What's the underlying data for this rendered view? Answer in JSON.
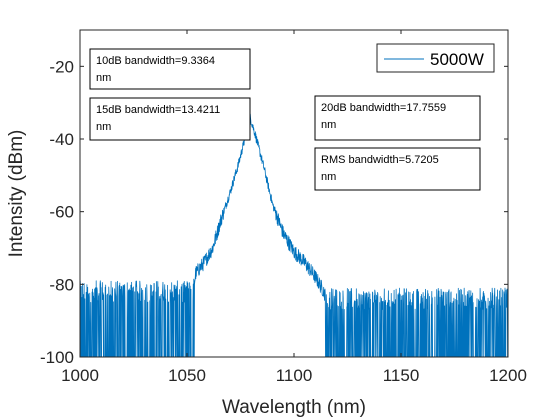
{
  "chart_data": {
    "type": "line",
    "title": "",
    "xlabel": "Wavelength (nm)",
    "ylabel": "Intensity (dBm)",
    "xlim": [
      1000,
      1200
    ],
    "ylim": [
      -100,
      -10
    ],
    "xticks": [
      1000,
      1050,
      1100,
      1150,
      1200
    ],
    "yticks": [
      -100,
      -80,
      -60,
      -40,
      -20
    ],
    "x_tick_labels": [
      "1000",
      "1050",
      "1100",
      "1150",
      "1200"
    ],
    "y_tick_labels": [
      "-100",
      "-80",
      "-60",
      "-40",
      "-20"
    ],
    "grid": false,
    "legend_position": "top-right",
    "series": [
      {
        "name": "5000W",
        "color": "#0072bd",
        "envelope": {
          "x": [
            1000,
            1020,
            1040,
            1053,
            1054,
            1058,
            1062,
            1066,
            1070,
            1074,
            1077,
            1079.5,
            1082,
            1086,
            1090,
            1095,
            1100,
            1105,
            1110,
            1114,
            1115,
            1130,
            1150,
            1170,
            1190,
            1200
          ],
          "y": [
            -82,
            -82,
            -82,
            -82,
            -77,
            -74,
            -70,
            -62,
            -55,
            -47,
            -40,
            -34,
            -39,
            -48,
            -58,
            -66,
            -71,
            -74,
            -78,
            -82,
            -84,
            -84,
            -84,
            -84,
            -84,
            -84
          ]
        },
        "noise_floor_regions": [
          [
            1000,
            1053.5
          ],
          [
            1114.5,
            1200
          ]
        ],
        "noise_floor": -100
      }
    ],
    "annotations": [
      {
        "lines": [
          "10dB bandwidth=9.3364",
          "nm"
        ]
      },
      {
        "lines": [
          "15dB bandwidth=13.4211",
          "nm"
        ]
      },
      {
        "lines": [
          "20dB bandwidth=17.7559",
          "nm"
        ]
      },
      {
        "lines": [
          " RMS bandwidth=5.7205",
          "nm"
        ]
      }
    ]
  }
}
